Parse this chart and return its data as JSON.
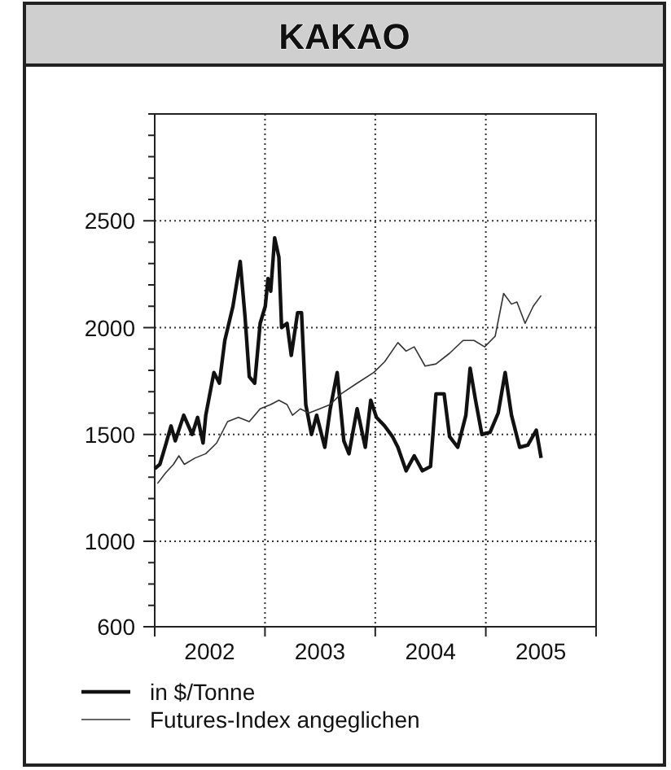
{
  "chart_data": {
    "type": "line",
    "title": "KAKAO",
    "legend": "bottom",
    "grid": true,
    "xlim": [
      "2002-01-01",
      "2006-01-01"
    ],
    "xticks": [
      {
        "value": "2002-01-01",
        "label": null
      },
      {
        "value": "2002-07-02",
        "label": "2002"
      },
      {
        "value": "2003-01-01",
        "label": null
      },
      {
        "value": "2003-07-02",
        "label": "2003"
      },
      {
        "value": "2004-01-01",
        "label": null
      },
      {
        "value": "2004-07-02",
        "label": "2004"
      },
      {
        "value": "2005-01-01",
        "label": null
      },
      {
        "value": "2005-07-02",
        "label": "2005"
      },
      {
        "value": "2006-01-01",
        "label": null
      }
    ],
    "ylim": [
      600,
      3000
    ],
    "yticks": [
      600,
      {
        "value": 700,
        "label": null
      },
      {
        "value": 800,
        "label": null
      },
      {
        "value": 900,
        "label": null
      },
      1000,
      {
        "value": 1100,
        "label": null
      },
      {
        "value": 1200,
        "label": null
      },
      {
        "value": 1300,
        "label": null
      },
      {
        "value": 1400,
        "label": null
      },
      1500,
      {
        "value": 1600,
        "label": null
      },
      {
        "value": 1700,
        "label": null
      },
      {
        "value": 1800,
        "label": null
      },
      {
        "value": 1900,
        "label": null
      },
      2000,
      {
        "value": 2100,
        "label": null
      },
      {
        "value": 2200,
        "label": null
      },
      {
        "value": 2300,
        "label": null
      },
      {
        "value": 2400,
        "label": null
      },
      2500,
      {
        "value": 2600,
        "label": null
      },
      {
        "value": 2700,
        "label": null
      },
      {
        "value": 2800,
        "label": null
      },
      {
        "value": 2900,
        "label": null
      },
      {
        "value": 3000,
        "label": null
      }
    ],
    "series": [
      {
        "name": "in $/Tonne",
        "color": "#111111",
        "x": [
          "2002-01-01",
          "2002-01-18",
          "2002-02-06",
          "2002-02-24",
          "2002-03-10",
          "2002-04-07",
          "2002-05-05",
          "2002-05-23",
          "2002-06-10",
          "2002-06-19",
          "2002-07-16",
          "2002-08-03",
          "2002-08-21",
          "2002-09-17",
          "2002-10-11",
          "2002-10-27",
          "2002-11-10",
          "2002-11-28",
          "2002-12-16",
          "2003-01-02",
          "2003-01-11",
          "2003-01-20",
          "2003-02-02",
          "2003-02-16",
          "2003-02-25",
          "2003-03-15",
          "2003-03-29",
          "2003-04-19",
          "2003-05-02",
          "2003-05-16",
          "2003-06-04",
          "2003-06-21",
          "2003-07-18",
          "2003-08-05",
          "2003-08-28",
          "2003-09-19",
          "2003-10-06",
          "2003-11-02",
          "2003-11-29",
          "2003-12-17",
          "2004-01-05",
          "2004-02-01",
          "2004-02-27",
          "2004-03-16",
          "2004-04-12",
          "2004-05-09",
          "2004-06-05",
          "2004-07-02",
          "2004-07-20",
          "2004-08-16",
          "2004-09-03",
          "2004-09-30",
          "2004-10-27",
          "2004-11-10",
          "2004-11-28",
          "2004-12-19",
          "2005-01-15",
          "2005-02-11",
          "2005-03-06",
          "2005-03-27",
          "2005-04-23",
          "2005-05-20",
          "2005-06-17",
          "2005-07-03"
        ],
        "values": [
          1340,
          1360,
          1450,
          1540,
          1470,
          1590,
          1500,
          1580,
          1460,
          1590,
          1790,
          1740,
          1940,
          2100,
          2310,
          2050,
          1770,
          1740,
          2020,
          2100,
          2230,
          2170,
          2420,
          2330,
          2000,
          2020,
          1870,
          2070,
          2070,
          1640,
          1500,
          1590,
          1440,
          1620,
          1790,
          1470,
          1410,
          1620,
          1440,
          1660,
          1580,
          1540,
          1490,
          1440,
          1330,
          1400,
          1330,
          1350,
          1690,
          1690,
          1490,
          1440,
          1590,
          1810,
          1660,
          1500,
          1510,
          1600,
          1790,
          1590,
          1440,
          1450,
          1520,
          1390
        ]
      },
      {
        "name": "Futures-Index angeglichen",
        "color": "#333333",
        "x": [
          "2002-01-10",
          "2002-02-06",
          "2002-03-04",
          "2002-03-22",
          "2002-04-09",
          "2002-05-15",
          "2002-06-19",
          "2002-07-25",
          "2002-08-30",
          "2002-10-05",
          "2002-11-10",
          "2002-12-16",
          "2003-01-20",
          "2003-02-16",
          "2003-03-15",
          "2003-04-02",
          "2003-04-28",
          "2003-05-26",
          "2003-07-01",
          "2003-08-05",
          "2003-09-10",
          "2003-11-02",
          "2003-12-27",
          "2004-02-01",
          "2004-03-16",
          "2004-04-12",
          "2004-05-09",
          "2004-06-14",
          "2004-07-20",
          "2004-09-03",
          "2004-10-18",
          "2004-11-23",
          "2004-12-28",
          "2005-02-01",
          "2005-03-01",
          "2005-03-27",
          "2005-04-14",
          "2005-05-11",
          "2005-06-07",
          "2005-07-03"
        ],
        "values": [
          1270,
          1320,
          1360,
          1400,
          1360,
          1390,
          1410,
          1460,
          1560,
          1580,
          1560,
          1620,
          1640,
          1660,
          1640,
          1590,
          1620,
          1600,
          1620,
          1640,
          1690,
          1740,
          1790,
          1840,
          1930,
          1890,
          1910,
          1820,
          1830,
          1880,
          1940,
          1940,
          1910,
          1960,
          2160,
          2110,
          2120,
          2020,
          2100,
          2150
        ]
      }
    ]
  }
}
